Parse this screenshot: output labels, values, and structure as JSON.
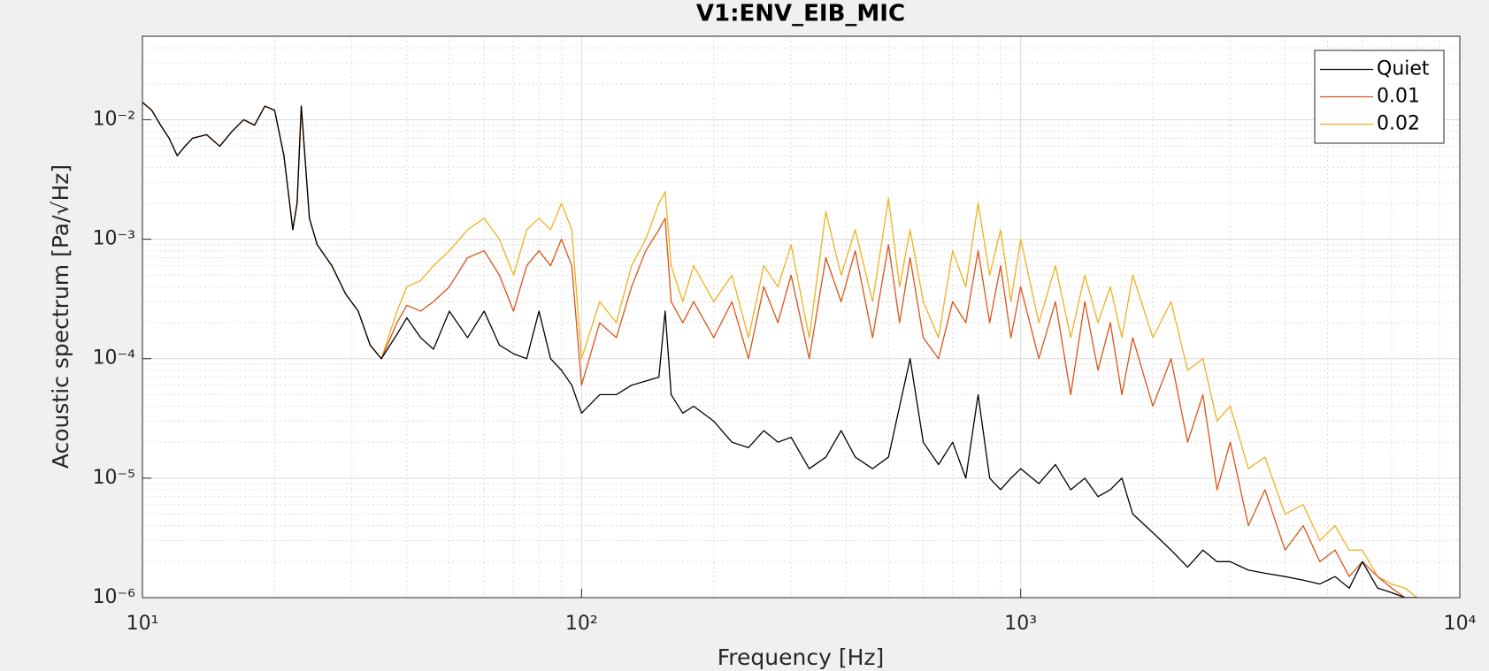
{
  "chart_data": {
    "type": "line",
    "title": "V1:ENV_EIB_MIC",
    "x_label": "Frequency [Hz]",
    "y_label": "Acoustic spectrum [Pa/√Hz]",
    "x_scale": "log",
    "y_scale": "log",
    "grid": true,
    "minor_grid": true,
    "legend": "northeast",
    "xlim": [
      10,
      10000
    ],
    "ylim": [
      1e-06,
      0.05
    ],
    "xticks": [
      {
        "value": 10,
        "label": "10¹"
      },
      {
        "value": 100,
        "label": "10²"
      },
      {
        "value": 1000,
        "label": "10³"
      },
      {
        "value": 10000,
        "label": "10⁴"
      }
    ],
    "yticks": [
      {
        "value": 1e-06,
        "label": "10⁻⁶"
      },
      {
        "value": 1e-05,
        "label": "10⁻⁵"
      },
      {
        "value": 0.0001,
        "label": "10⁻⁴"
      },
      {
        "value": 0.001,
        "label": "10⁻³"
      },
      {
        "value": 0.01,
        "label": "10⁻²"
      }
    ],
    "x": [
      10,
      10.5,
      11,
      11.5,
      12,
      12.5,
      13,
      14,
      15,
      16,
      17,
      18,
      19,
      20,
      21,
      22,
      22.5,
      23,
      24,
      25,
      27,
      29,
      31,
      33,
      35,
      38,
      40,
      43,
      46,
      50,
      55,
      60,
      65,
      70,
      75,
      80,
      85,
      90,
      95,
      100,
      110,
      120,
      130,
      140,
      150,
      155,
      160,
      170,
      180,
      200,
      220,
      240,
      260,
      280,
      300,
      330,
      360,
      390,
      420,
      460,
      500,
      530,
      560,
      600,
      650,
      700,
      750,
      800,
      850,
      900,
      950,
      1000,
      1100,
      1200,
      1300,
      1400,
      1500,
      1600,
      1700,
      1800,
      2000,
      2200,
      2400,
      2600,
      2800,
      3000,
      3300,
      3600,
      4000,
      4400,
      4800,
      5200,
      5600,
      6000,
      6500,
      7000,
      7500,
      8000
    ],
    "series": [
      {
        "name": "Quiet",
        "color": "#000000",
        "values": [
          0.014,
          0.012,
          0.009,
          0.007,
          0.005,
          0.006,
          0.007,
          0.0075,
          0.006,
          0.008,
          0.01,
          0.009,
          0.013,
          0.012,
          0.005,
          0.0012,
          0.002,
          0.013,
          0.0015,
          0.0009,
          0.0006,
          0.00035,
          0.00025,
          0.00013,
          0.0001,
          0.00016,
          0.00022,
          0.00015,
          0.00012,
          0.00025,
          0.00015,
          0.00025,
          0.00013,
          0.00011,
          0.0001,
          0.00025,
          0.0001,
          8e-05,
          6e-05,
          3.5e-05,
          5e-05,
          5e-05,
          6e-05,
          6.5e-05,
          7e-05,
          0.00025,
          5e-05,
          3.5e-05,
          4e-05,
          3e-05,
          2e-05,
          1.8e-05,
          2.5e-05,
          2e-05,
          2.2e-05,
          1.2e-05,
          1.5e-05,
          2.5e-05,
          1.5e-05,
          1.2e-05,
          1.5e-05,
          4e-05,
          0.0001,
          2e-05,
          1.3e-05,
          2e-05,
          1e-05,
          5e-05,
          1e-05,
          8e-06,
          1e-05,
          1.2e-05,
          9e-06,
          1.3e-05,
          8e-06,
          1e-05,
          7e-06,
          8e-06,
          1e-05,
          5e-06,
          3.5e-06,
          2.5e-06,
          1.8e-06,
          2.5e-06,
          2e-06,
          2e-06,
          1.7e-06,
          1.6e-06,
          1.5e-06,
          1.4e-06,
          1.3e-06,
          1.5e-06,
          1.2e-06,
          2e-06,
          1.2e-06,
          1.1e-06,
          1e-06,
          1e-06
        ]
      },
      {
        "name": "0.01",
        "color": "#d95319",
        "values": [
          0.014,
          0.012,
          0.009,
          0.007,
          0.005,
          0.006,
          0.007,
          0.0075,
          0.006,
          0.008,
          0.01,
          0.009,
          0.013,
          0.012,
          0.005,
          0.0012,
          0.002,
          0.013,
          0.0015,
          0.0009,
          0.0006,
          0.00035,
          0.00025,
          0.00013,
          0.0001,
          0.0002,
          0.00028,
          0.00025,
          0.0003,
          0.0004,
          0.0007,
          0.0008,
          0.0005,
          0.00025,
          0.0006,
          0.0008,
          0.0006,
          0.001,
          0.0006,
          6e-05,
          0.0002,
          0.00015,
          0.0004,
          0.0008,
          0.0012,
          0.0015,
          0.0003,
          0.0002,
          0.0003,
          0.00015,
          0.0003,
          0.0001,
          0.0004,
          0.0002,
          0.0005,
          0.0001,
          0.0007,
          0.0003,
          0.0008,
          0.00015,
          0.0009,
          0.0002,
          0.0007,
          0.00015,
          0.0001,
          0.0003,
          0.0002,
          0.0008,
          0.0002,
          0.0006,
          0.00015,
          0.0004,
          0.0001,
          0.0003,
          5e-05,
          0.0003,
          8e-05,
          0.0002,
          5e-05,
          0.00015,
          4e-05,
          0.0001,
          2e-05,
          5e-05,
          8e-06,
          2e-05,
          4e-06,
          8e-06,
          2.5e-06,
          4e-06,
          2e-06,
          2.5e-06,
          1.5e-06,
          2e-06,
          1.5e-06,
          1.2e-06,
          1e-06,
          1e-06
        ]
      },
      {
        "name": "0.02",
        "color": "#edb120",
        "values": [
          0.014,
          0.012,
          0.009,
          0.007,
          0.005,
          0.006,
          0.007,
          0.0075,
          0.006,
          0.008,
          0.01,
          0.009,
          0.013,
          0.012,
          0.005,
          0.0012,
          0.002,
          0.013,
          0.0015,
          0.0009,
          0.0006,
          0.00035,
          0.00025,
          0.00013,
          0.0001,
          0.00025,
          0.0004,
          0.00045,
          0.0006,
          0.0008,
          0.0012,
          0.0015,
          0.001,
          0.0005,
          0.0012,
          0.0015,
          0.0012,
          0.002,
          0.0012,
          0.0001,
          0.0003,
          0.0002,
          0.0006,
          0.001,
          0.002,
          0.0025,
          0.0006,
          0.0003,
          0.0006,
          0.0003,
          0.0005,
          0.00015,
          0.0006,
          0.0004,
          0.0009,
          0.00015,
          0.0017,
          0.0005,
          0.0012,
          0.0003,
          0.0022,
          0.0004,
          0.0012,
          0.0003,
          0.00015,
          0.0008,
          0.0004,
          0.002,
          0.0005,
          0.0012,
          0.0003,
          0.001,
          0.0002,
          0.0006,
          0.00015,
          0.0005,
          0.0002,
          0.0004,
          0.00015,
          0.0005,
          0.00015,
          0.0003,
          8e-05,
          0.0001,
          3e-05,
          4e-05,
          1.2e-05,
          1.5e-05,
          5e-06,
          6e-06,
          3e-06,
          4e-06,
          2.5e-06,
          2.5e-06,
          1.5e-06,
          1.3e-06,
          1.2e-06,
          1e-06
        ]
      }
    ]
  }
}
